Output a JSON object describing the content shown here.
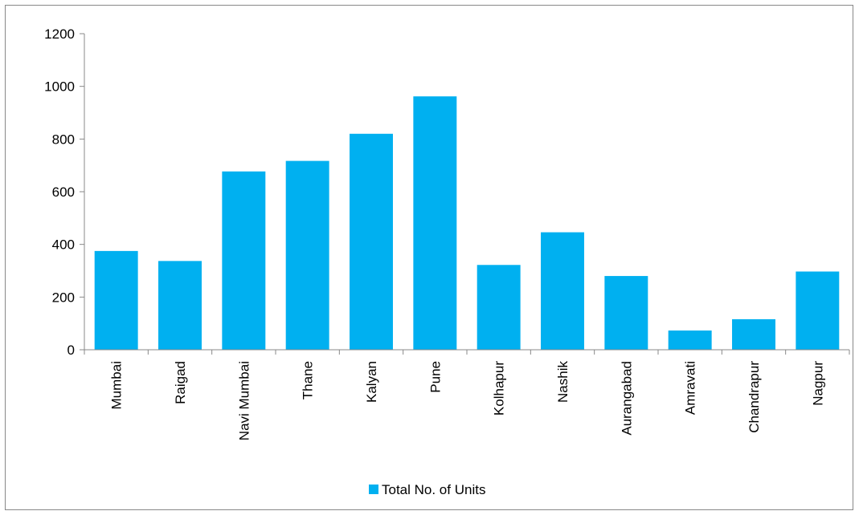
{
  "chart_data": {
    "type": "bar",
    "categories": [
      "Mumbai",
      "Raigad",
      "Navi Mumbai",
      "Thane",
      "Kalyan",
      "Pune",
      "Kolhapur",
      "Nashik",
      "Aurangabad",
      "Amravati",
      "Chandrapur",
      "Nagpur"
    ],
    "series": [
      {
        "name": "Total No. of Units",
        "values": [
          375,
          337,
          677,
          717,
          820,
          962,
          322,
          446,
          280,
          73,
          116,
          297
        ],
        "color": "#00B0F0"
      }
    ],
    "ylim": [
      0,
      1200
    ],
    "yticks": [
      0,
      200,
      400,
      600,
      800,
      1000,
      1200
    ],
    "grid": false,
    "legend": "bottom"
  }
}
